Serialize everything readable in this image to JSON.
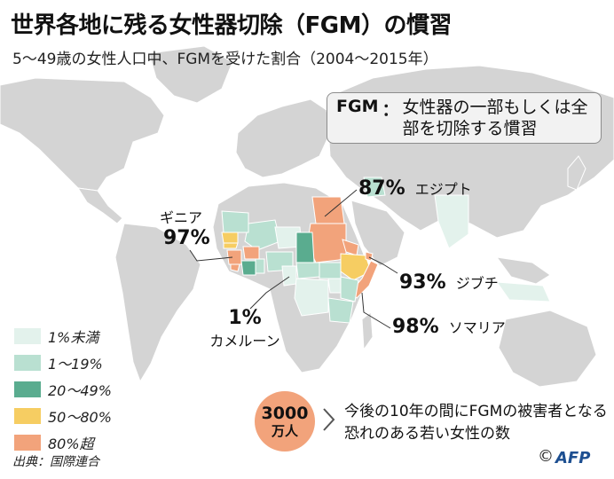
{
  "title": "世界各地に残る女性器切除（FGM）の慣習",
  "subtitle": "5〜49歳の女性人口中、FGMを受けた割合（2004〜2015年）",
  "definition": {
    "term": "FGM",
    "colon": "：",
    "text": "女性器の一部もしくは全部を切除する慣習"
  },
  "countries": [
    {
      "name": "ギニア",
      "percent": "97%"
    },
    {
      "name": "エジプト",
      "percent": "87%"
    },
    {
      "name": "ジブチ",
      "percent": "93%"
    },
    {
      "name": "ソマリア",
      "percent": "98%"
    },
    {
      "name": "カメルーン",
      "percent": "1%"
    }
  ],
  "legend": [
    {
      "label": "1%未満",
      "color": "#e3f2ec"
    },
    {
      "label": "1〜19%",
      "color": "#b9e0d1"
    },
    {
      "label": "20〜49%",
      "color": "#5aac8f"
    },
    {
      "label": "50〜80%",
      "color": "#f6cd62"
    },
    {
      "label": "80%超",
      "color": "#f2a37b"
    }
  ],
  "callout": {
    "number": "3000",
    "unit": "万人",
    "text": "今後の10年の間にFGMの被害者となる恐れのある若い女性の数"
  },
  "source": "出典：国際連合",
  "copyright": "©",
  "agency": "AFP",
  "colors": {
    "land": "#d4d4d4",
    "ocean": "#ffffff",
    "border": "#ffffff",
    "over80": "#f2a37b",
    "r50_80": "#f6cd62",
    "r20_49": "#5aac8f",
    "r1_19": "#b9e0d1",
    "under1": "#e3f2ec"
  }
}
